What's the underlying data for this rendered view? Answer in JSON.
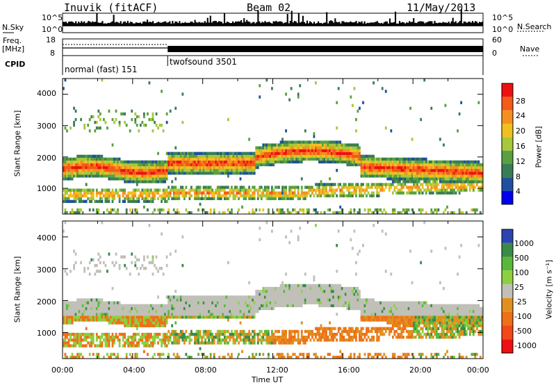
{
  "header": {
    "station": "Inuvik (fitACF)",
    "beam": "Beam 02",
    "date": "11/May/2013"
  },
  "params": {
    "nsky_label": "N.Sky",
    "nsearch_label": "N.Search",
    "freq_label": "Freq.",
    "freq_unit": "[MHz]",
    "nave_label": "Nave",
    "cpid_label": "CPID",
    "noise_ticks": [
      "10^5",
      "10^0"
    ],
    "freq_ticks": [
      "18",
      "8"
    ],
    "nave_ticks": [
      "60",
      "0"
    ],
    "cpid_segments": [
      {
        "label": "normal (fast) 151",
        "start": 0,
        "end": 6
      },
      {
        "label": "twofsound 3501",
        "start": 6,
        "end": 24
      }
    ]
  },
  "colors": {
    "power": [
      "#0000ee",
      "#1f4f9e",
      "#3a7d55",
      "#5aa040",
      "#a6c83a",
      "#f0c020",
      "#f59020",
      "#f45a18",
      "#ee1010"
    ],
    "velocity": [
      "#2c44b0",
      "#3a8a48",
      "#5ab838",
      "#8cd040",
      "#c0c0b8",
      "#e09020",
      "#ee7018",
      "#f04818",
      "#ee1010"
    ],
    "gray": "#c0c0b8"
  },
  "chart_data": [
    {
      "type": "heatmap",
      "name": "power",
      "xlabel": "",
      "ylabel": "Slant Range [km]",
      "xlim": [
        0,
        24
      ],
      "ylim": [
        180,
        4500
      ],
      "yticks": [
        "4000",
        "3000",
        "2000",
        "1000"
      ],
      "colorbar_label": "Power [dB]",
      "colorbar_ticks": [
        "28",
        "24",
        "20",
        "16",
        "12",
        "8",
        "4"
      ],
      "clim": [
        0,
        30
      ]
    },
    {
      "type": "heatmap",
      "name": "velocity",
      "xlabel": "Time UT",
      "ylabel": "Slant Range [km]",
      "xlim": [
        0,
        24
      ],
      "ylim": [
        180,
        4500
      ],
      "xticks": [
        "00:00",
        "04:00",
        "08:00",
        "12:00",
        "16:00",
        "20:00",
        "00:00"
      ],
      "yticks": [
        "4000",
        "3000",
        "2000",
        "1000"
      ],
      "colorbar_label": "Velocity [m s⁻¹]",
      "colorbar_ticks": [
        "1000",
        "500",
        "100",
        "25",
        "-25",
        "-100",
        "-500",
        "-1000"
      ],
      "clim": [
        -1000,
        1000
      ]
    }
  ]
}
